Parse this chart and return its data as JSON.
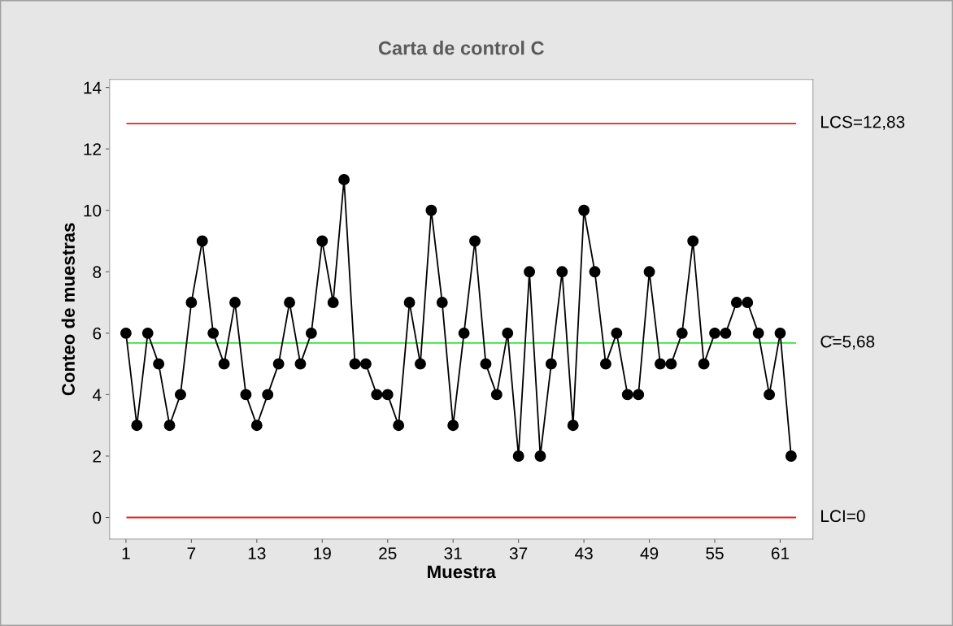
{
  "chart_data": {
    "type": "line",
    "title": "Carta de control C",
    "xlabel": "Muestra",
    "ylabel": "Conteo de muestras",
    "x": [
      1,
      2,
      3,
      4,
      5,
      6,
      7,
      8,
      9,
      10,
      11,
      12,
      13,
      14,
      15,
      16,
      17,
      18,
      19,
      20,
      21,
      22,
      23,
      24,
      25,
      26,
      27,
      28,
      29,
      30,
      31,
      32,
      33,
      34,
      35,
      36,
      37,
      38,
      39,
      40,
      41,
      42,
      43,
      44,
      45,
      46,
      47,
      48,
      49,
      50,
      51,
      52,
      53,
      54,
      55,
      56,
      57,
      58,
      59,
      60,
      61,
      62
    ],
    "series": [
      {
        "color": "#000000",
        "values": [
          6,
          3,
          6,
          5,
          3,
          4,
          7,
          9,
          6,
          5,
          7,
          4,
          3,
          4,
          5,
          7,
          5,
          6,
          9,
          7,
          11,
          5,
          5,
          4,
          4,
          3,
          7,
          5,
          10,
          7,
          3,
          6,
          9,
          5,
          4,
          6,
          2,
          8,
          2,
          5,
          8,
          3,
          10,
          8,
          5,
          6,
          4,
          4,
          8,
          5,
          5,
          6,
          9,
          5,
          6,
          6,
          7,
          7,
          6,
          4,
          6,
          2
        ]
      }
    ],
    "xlim": [
      -0.5,
      64
    ],
    "xticks": [
      1,
      7,
      13,
      19,
      25,
      31,
      37,
      43,
      49,
      55,
      61
    ],
    "ylim": [
      -0.7,
      14.26
    ],
    "yticks": [
      0,
      2,
      4,
      6,
      8,
      10,
      12,
      14
    ],
    "ref_lines": [
      {
        "axis": "y",
        "value": 12.83,
        "label": "LCS=12,83",
        "color": "#e8201c"
      },
      {
        "axis": "y",
        "value": 5.68,
        "label": "C̄=5,68",
        "color": "#33e633"
      },
      {
        "axis": "y",
        "value": 0,
        "label": "LCI=0",
        "color": "#e8201c"
      }
    ],
    "grid": false,
    "legend": false,
    "marker": "circle",
    "line_style": "solid"
  }
}
